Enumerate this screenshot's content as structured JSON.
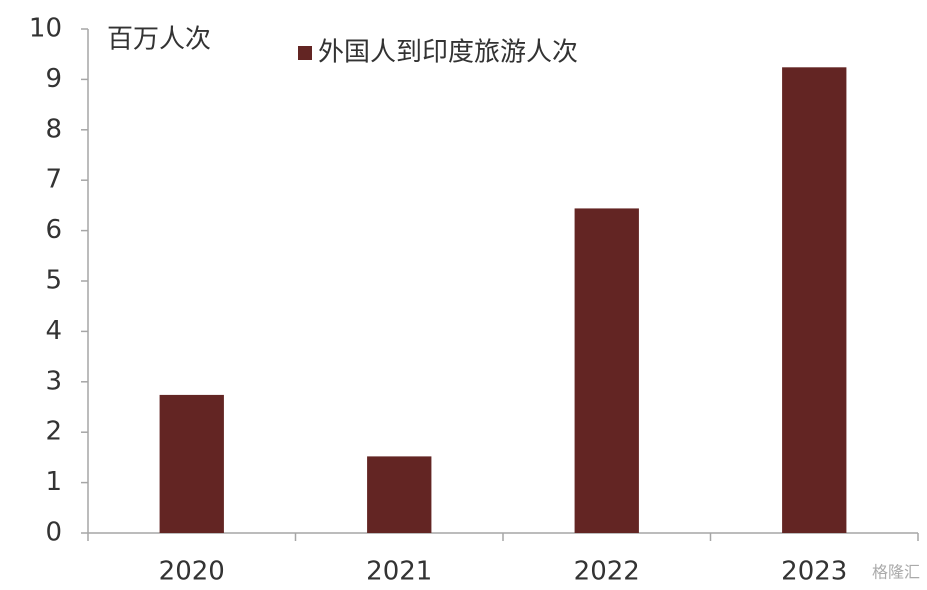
{
  "chart_data": {
    "type": "bar",
    "y_label": "百万人次",
    "categories": [
      "2020",
      "2021",
      "2022",
      "2023"
    ],
    "series": [
      {
        "name": "外国人到印度旅游人次",
        "color": "#632523",
        "values": [
          2.74,
          1.52,
          6.44,
          9.24
        ]
      }
    ],
    "ylim": [
      0,
      10
    ],
    "yticks": [
      0,
      1,
      2,
      3,
      4,
      5,
      6,
      7,
      8,
      9,
      10
    ],
    "grid": false,
    "watermark": "格隆汇"
  }
}
